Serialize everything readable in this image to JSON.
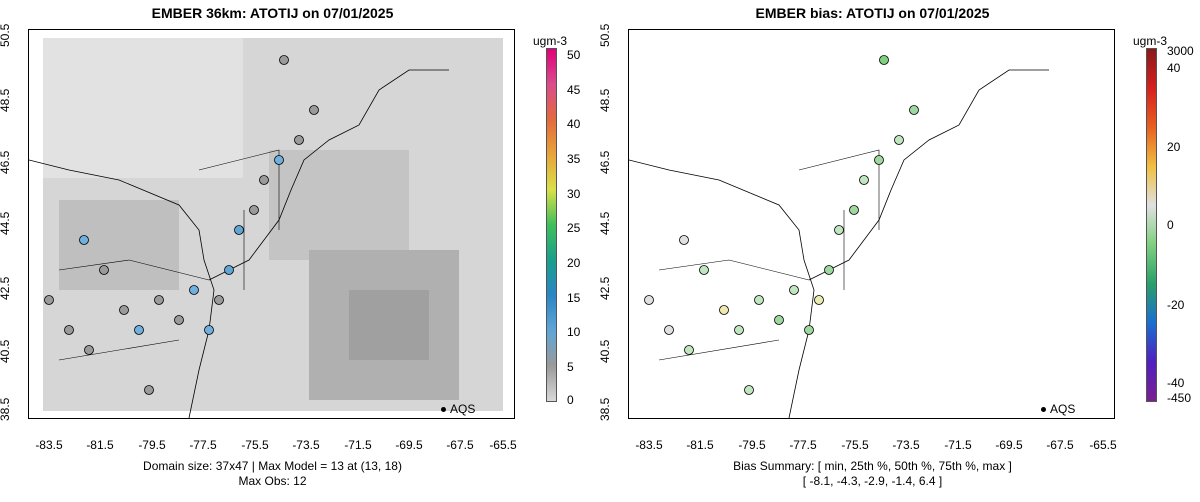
{
  "left": {
    "title": "EMBER 36km: ATOTIJ on 07/01/2025",
    "footer_line1": "Domain size: 37x47 | Max Model = 13 at (13, 18)",
    "footer_line2": "Max Obs: 12",
    "legend_units": "ugm-3",
    "legend_labels": [
      "50",
      "45",
      "40",
      "35",
      "30",
      "25",
      "20",
      "15",
      "10",
      "5",
      "0"
    ],
    "aqs_label": "AQS"
  },
  "right": {
    "title": "EMBER bias: ATOTIJ on 07/01/2025",
    "footer_line1": "Bias Summary: [ min, 25th %, 50th %, 75th %, max ]",
    "footer_line2": "[ -8.1,   -4.3,   -2.9,   -1.4,   6.4 ]",
    "legend_units": "ugm-3",
    "legend_labels": [
      "3000",
      "40",
      "20",
      "0",
      "-20",
      "-40",
      "-450"
    ],
    "aqs_label": "AQS"
  },
  "axes": {
    "y_ticks": [
      "50.5",
      "48.5",
      "46.5",
      "44.5",
      "42.5",
      "40.5",
      "38.5"
    ],
    "x_ticks": [
      "-83.5",
      "-81.5",
      "-79.5",
      "-77.5",
      "-75.5",
      "-73.5",
      "-71.5",
      "-69.5",
      "-67.5",
      "-65.5"
    ]
  },
  "colors": {
    "left_scale": [
      "#d9d9d9",
      "#bdbdbd",
      "#9a9a9a",
      "#5fa6d6",
      "#2b86c5",
      "#1a9f8c",
      "#3fbf5a",
      "#d9e04a",
      "#e8a43a",
      "#e36a3e",
      "#d94d8c",
      "#e0007a"
    ],
    "right_scale": [
      "#8a1a1a",
      "#d62020",
      "#e86020",
      "#f0c040",
      "#e0e0e0",
      "#7fd07f",
      "#2a9f6a",
      "#1a6fd0",
      "#5020c0",
      "#7a2090"
    ]
  }
}
